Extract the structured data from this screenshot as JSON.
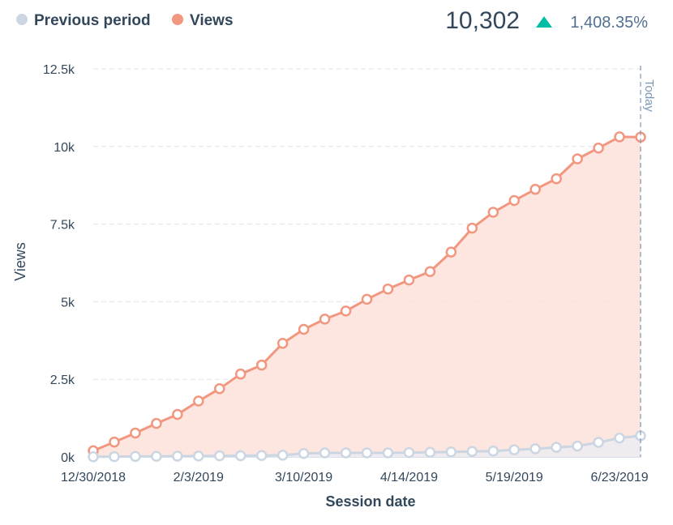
{
  "header": {
    "total_value": "10,302",
    "change_percent": "1,408.35%",
    "change_direction": "up",
    "change_color": "#00bda5"
  },
  "today_label": "Today",
  "colors": {
    "views": "#f2977f",
    "views_fill": "#fde1da",
    "previous": "#cbd6e2",
    "grid": "#dfe3eb",
    "text": "#33475b"
  },
  "chart_data": {
    "type": "area",
    "xlabel": "Session date",
    "ylabel": "Views",
    "ylim": [
      0,
      12500
    ],
    "y_ticks": [
      0,
      2500,
      5000,
      7500,
      10000,
      12500
    ],
    "y_tick_labels": [
      "0k",
      "2.5k",
      "5k",
      "7.5k",
      "10k",
      "12.5k"
    ],
    "x_tick_labels": [
      "12/30/2018",
      "2/3/2019",
      "3/10/2019",
      "4/14/2019",
      "5/19/2019",
      "6/23/2019"
    ],
    "x_tick_indices": [
      0,
      5,
      10,
      15,
      20,
      25
    ],
    "grid": true,
    "legend_position": "top-left",
    "x": [
      "12/30/2018",
      "1/6/2019",
      "1/13/2019",
      "1/20/2019",
      "1/27/2019",
      "2/3/2019",
      "2/10/2019",
      "2/17/2019",
      "2/24/2019",
      "3/3/2019",
      "3/10/2019",
      "3/17/2019",
      "3/24/2019",
      "3/31/2019",
      "4/7/2019",
      "4/14/2019",
      "4/21/2019",
      "4/28/2019",
      "5/5/2019",
      "5/12/2019",
      "5/19/2019",
      "5/26/2019",
      "6/2/2019",
      "6/9/2019",
      "6/16/2019",
      "6/23/2019",
      "6/30/2019"
    ],
    "series": [
      {
        "name": "Previous period",
        "values": [
          5,
          10,
          15,
          20,
          25,
          30,
          35,
          40,
          45,
          55,
          110,
          130,
          130,
          130,
          130,
          140,
          150,
          160,
          175,
          190,
          230,
          260,
          310,
          350,
          470,
          610,
          683
        ]
      },
      {
        "name": "Views",
        "values": [
          200,
          480,
          770,
          1080,
          1370,
          1800,
          2200,
          2670,
          2960,
          3660,
          4110,
          4440,
          4700,
          5080,
          5410,
          5700,
          5970,
          6600,
          7370,
          7880,
          8260,
          8620,
          8960,
          9600,
          9950,
          10310,
          10302
        ]
      }
    ]
  }
}
